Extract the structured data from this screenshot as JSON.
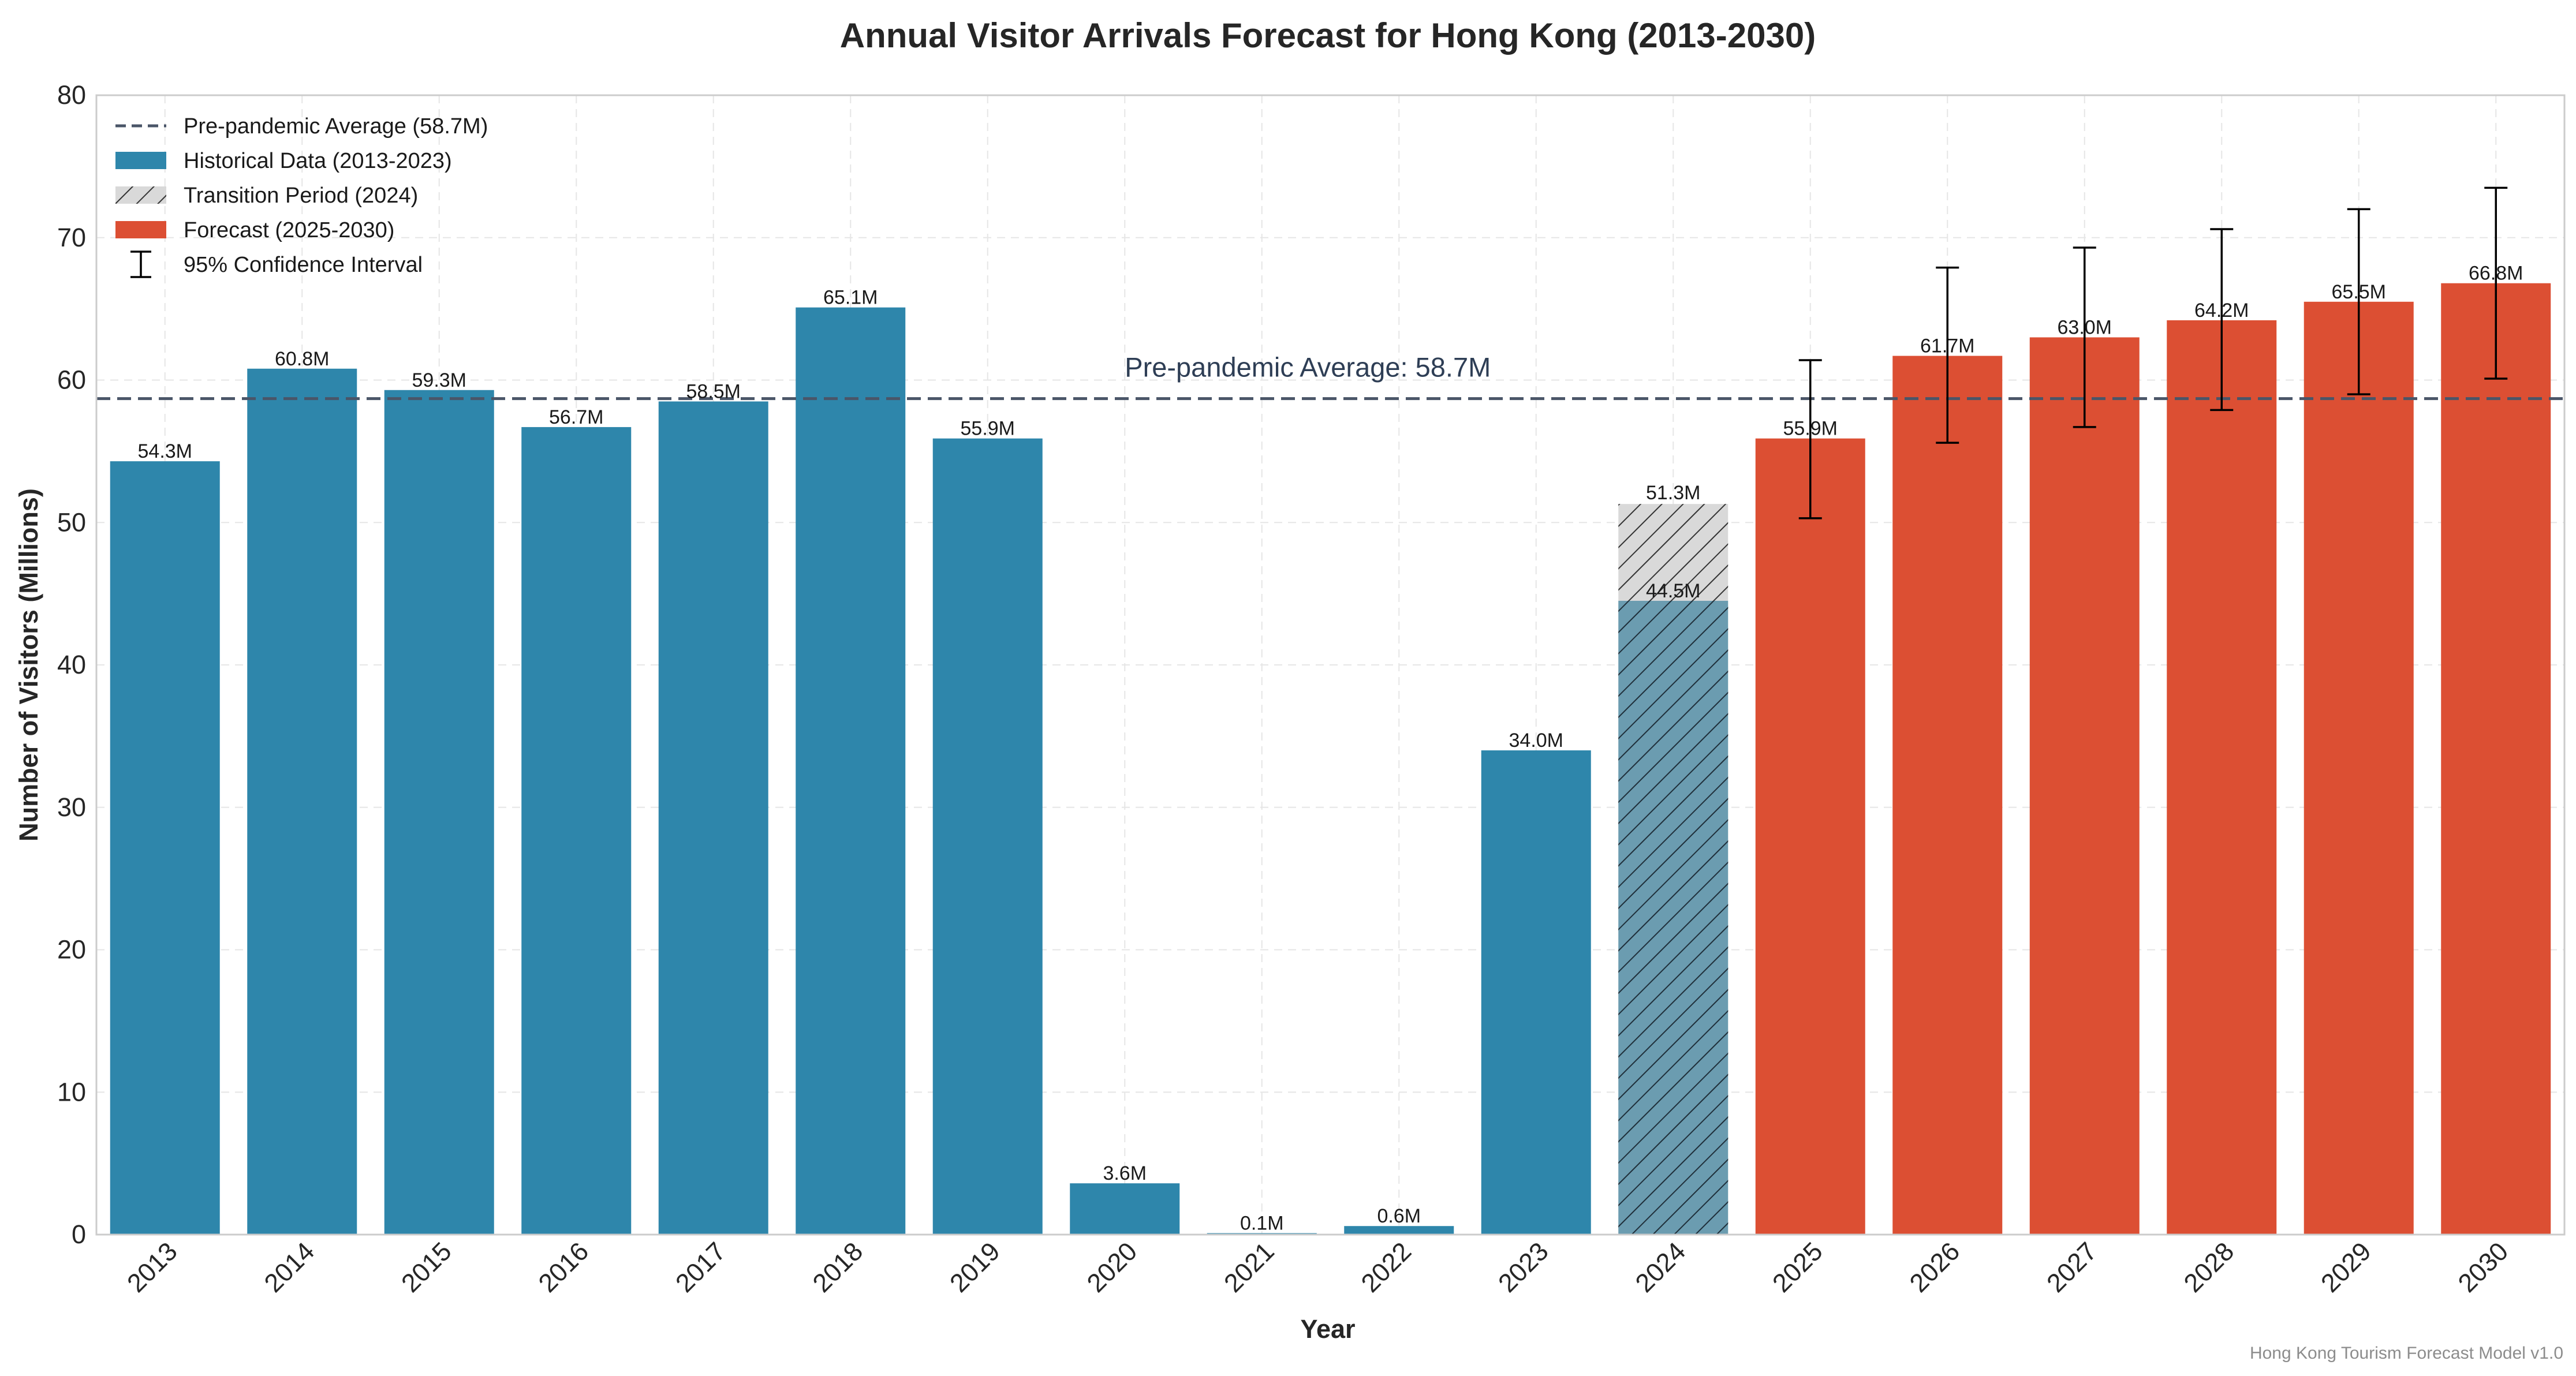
{
  "chart_data": {
    "type": "bar",
    "title": "Annual Visitor Arrivals Forecast for Hong Kong (2013-2030)",
    "xlabel": "Year",
    "ylabel": "Number of Visitors (Millions)",
    "ylim": [
      0,
      80
    ],
    "yticks": [
      "0",
      "10",
      "20",
      "30",
      "40",
      "50",
      "60",
      "70",
      "80"
    ],
    "grid": true,
    "legend_position": "top-left",
    "categories": [
      "2013",
      "2014",
      "2015",
      "2016",
      "2017",
      "2018",
      "2019",
      "2020",
      "2021",
      "2022",
      "2023",
      "2024",
      "2025",
      "2026",
      "2027",
      "2028",
      "2029",
      "2030"
    ],
    "historical": {
      "name": "Historical Data (2013-2023)",
      "color": "#2e86ab",
      "years": [
        "2013",
        "2014",
        "2015",
        "2016",
        "2017",
        "2018",
        "2019",
        "2020",
        "2021",
        "2022",
        "2023"
      ],
      "values": [
        54.3,
        60.8,
        59.3,
        56.7,
        58.5,
        65.1,
        55.9,
        3.6,
        0.1,
        0.6,
        34.0
      ],
      "labels": [
        "54.3M",
        "60.8M",
        "59.3M",
        "56.7M",
        "58.5M",
        "65.1M",
        "55.9M",
        "3.6M",
        "0.1M",
        "0.6M",
        "34.0M"
      ]
    },
    "transition": {
      "name": "Transition Period (2024)",
      "year": "2024",
      "actual_value": 44.5,
      "actual_label": "44.5M",
      "actual_color": "#6b9cb0",
      "projected_value": 51.3,
      "projected_label": "51.3M",
      "projected_color": "#d9d9d9"
    },
    "forecast": {
      "name": "Forecast (2025-2030)",
      "color": "#dc4f33",
      "years": [
        "2025",
        "2026",
        "2027",
        "2028",
        "2029",
        "2030"
      ],
      "values": [
        55.9,
        61.7,
        63.0,
        64.2,
        65.5,
        66.8
      ],
      "labels": [
        "55.9M",
        "61.7M",
        "63.0M",
        "64.2M",
        "65.5M",
        "66.8M"
      ],
      "ci_lower": [
        50.3,
        55.6,
        56.7,
        57.9,
        59.0,
        60.1
      ],
      "ci_upper": [
        61.4,
        67.9,
        69.3,
        70.6,
        72.0,
        73.5
      ]
    },
    "reference_line": {
      "name": "Pre-pandemic Average (58.7M)",
      "value": 58.7,
      "color": "#4a5568",
      "annotation": "Pre-pandemic Average: 58.7M"
    },
    "legend": [
      {
        "label": "Pre-pandemic Average (58.7M)",
        "kind": "line",
        "color": "#4a5568"
      },
      {
        "label": "Historical Data (2013-2023)",
        "kind": "bar",
        "color": "#2e86ab"
      },
      {
        "label": "Transition Period (2024)",
        "kind": "hatch",
        "color": "#d9d9d9"
      },
      {
        "label": "Forecast (2025-2030)",
        "kind": "bar",
        "color": "#dc4f33"
      },
      {
        "label": "95% Confidence Interval",
        "kind": "errorbar",
        "color": "#000000"
      }
    ]
  },
  "footer": "Hong Kong Tourism Forecast Model v1.0"
}
